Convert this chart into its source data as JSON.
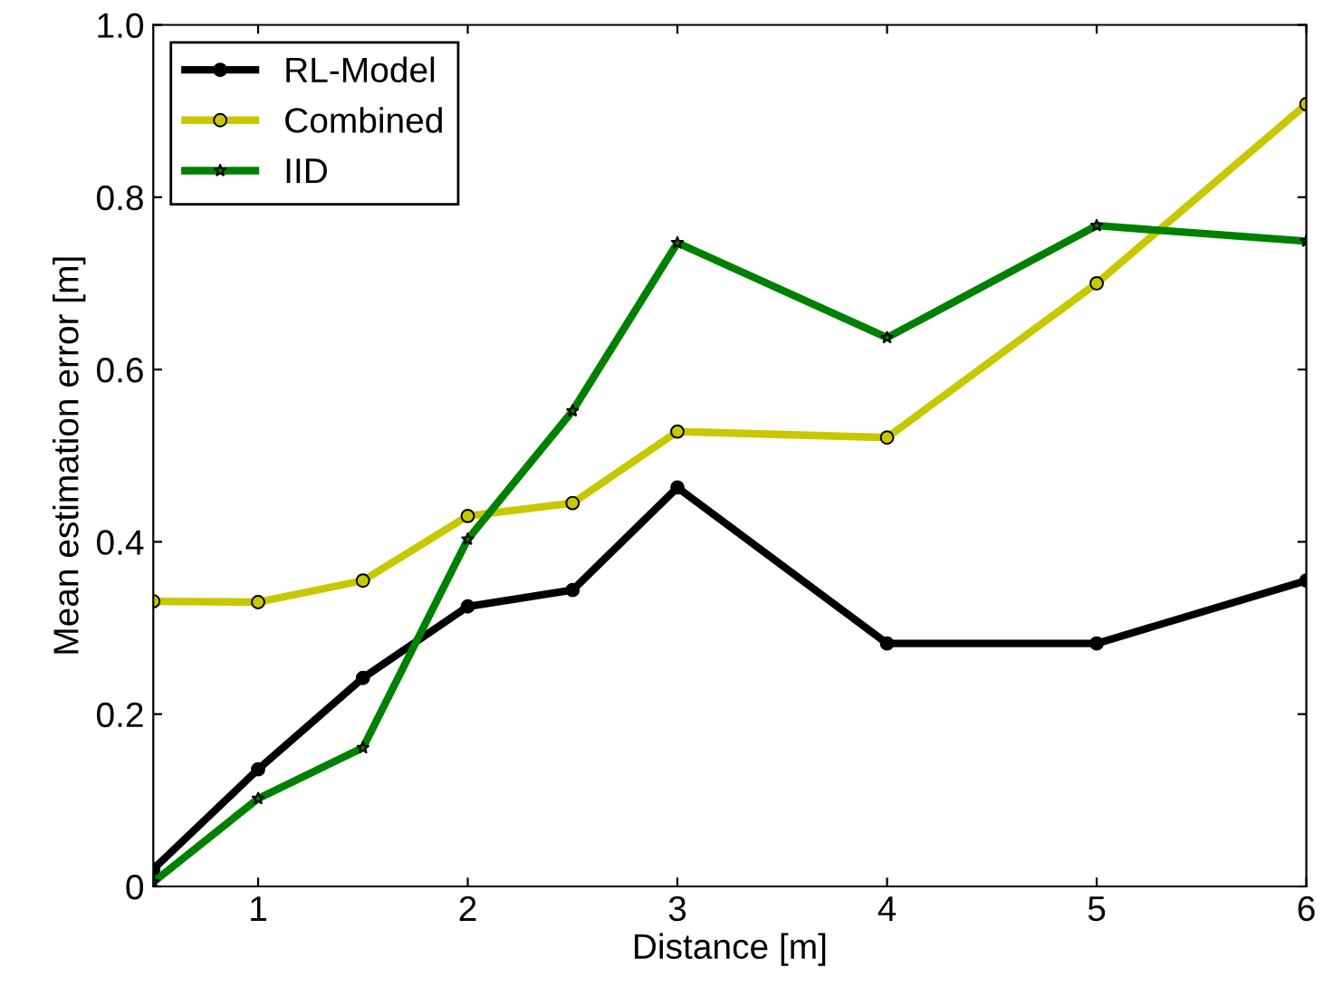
{
  "chart_data": {
    "type": "line",
    "xlabel": "Distance [m]",
    "ylabel": "Mean estimation error [m]",
    "x": [
      0.5,
      1,
      1.5,
      2,
      2.5,
      3,
      4,
      5,
      6
    ],
    "series": [
      {
        "name": "RL-Model",
        "color": "#000000",
        "marker": "circle",
        "values": [
          0.02,
          0.136,
          0.242,
          0.325,
          0.344,
          0.463,
          0.282,
          0.282,
          0.355
        ]
      },
      {
        "name": "Combined",
        "color": "#c8c800",
        "marker": "circle",
        "values": [
          0.331,
          0.33,
          0.355,
          0.43,
          0.445,
          0.528,
          0.521,
          0.7,
          0.908
        ]
      },
      {
        "name": "IID",
        "color": "#008000",
        "marker": "star",
        "values": [
          0.005,
          0.102,
          0.161,
          0.403,
          0.552,
          0.747,
          0.637,
          0.767,
          0.749
        ]
      }
    ],
    "xlim": [
      0.5,
      6
    ],
    "ylim": [
      0,
      1
    ],
    "xticks": [
      1,
      2,
      3,
      4,
      5,
      6
    ],
    "yticks": [
      0,
      0.2,
      0.4,
      0.6,
      0.8,
      {
        "value": 1,
        "label": "1.0"
      }
    ],
    "grid": false,
    "legend": "top left",
    "line_style": "solid"
  }
}
